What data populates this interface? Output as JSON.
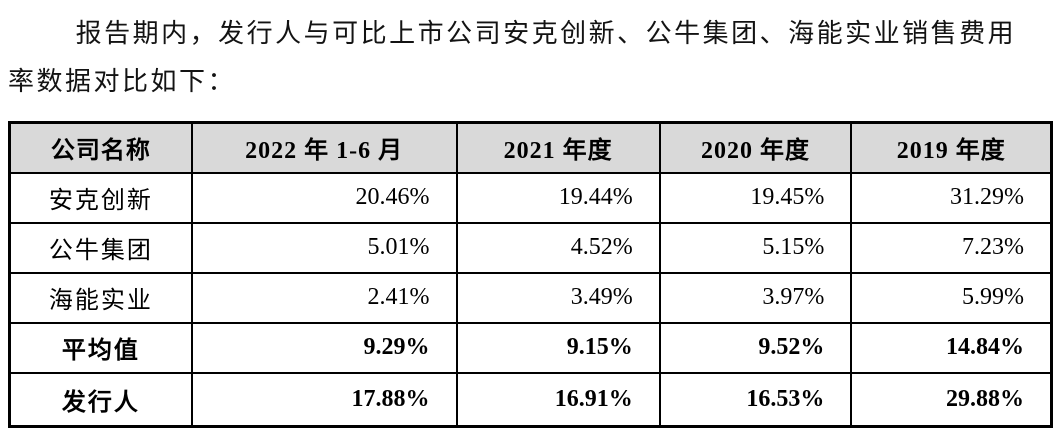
{
  "paragraph": {
    "line1": "报告期内，发行人与可比上市公司安克创新、公牛集团、海能实业销售费用",
    "line2": "率数据对比如下："
  },
  "table": {
    "title_semantic": "销售费用率数据对比表",
    "header_bg": "#d9d9d9",
    "border_color": "#000000",
    "headers": [
      "公司名称",
      "2022 年 1-6 月",
      "2021 年度",
      "2020 年度",
      "2019 年度"
    ],
    "rows": [
      {
        "name": "安克创新",
        "values": [
          "20.46%",
          "19.44%",
          "19.45%",
          "31.29%"
        ],
        "bold": false
      },
      {
        "name": "公牛集团",
        "values": [
          "5.01%",
          "4.52%",
          "5.15%",
          "7.23%"
        ],
        "bold": false
      },
      {
        "name": "海能实业",
        "values": [
          "2.41%",
          "3.49%",
          "3.97%",
          "5.99%"
        ],
        "bold": false
      },
      {
        "name": "平均值",
        "values": [
          "9.29%",
          "9.15%",
          "9.52%",
          "14.84%"
        ],
        "bold": true
      },
      {
        "name": "发行人",
        "values": [
          "17.88%",
          "16.91%",
          "16.53%",
          "29.88%"
        ],
        "bold": true
      }
    ]
  }
}
